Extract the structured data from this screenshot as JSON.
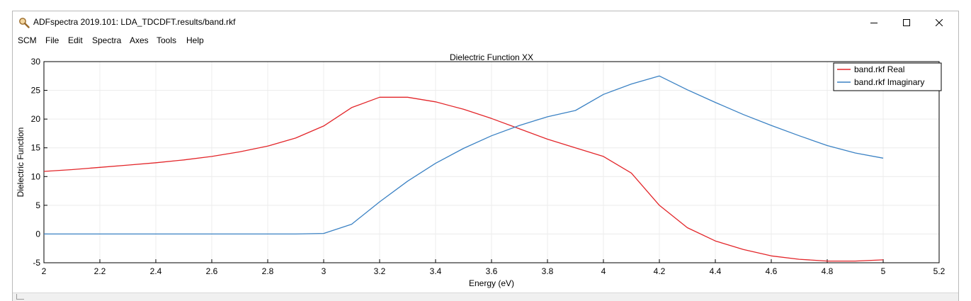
{
  "window": {
    "title": "ADFspectra 2019.101: LDA_TDCDFT.results/band.rkf"
  },
  "menu": {
    "items": [
      "SCM",
      "File",
      "Edit",
      "Spectra",
      "Axes",
      "Tools",
      "Help"
    ]
  },
  "icons": {
    "app": "magnifier-icon",
    "minimize": "minimize-icon",
    "maximize": "maximize-icon",
    "close": "close-icon"
  },
  "chart_data": {
    "type": "line",
    "title": "Dielectric Function  XX",
    "xlabel": "Energy (eV)",
    "ylabel": "Dielectric Function",
    "xlim": [
      2,
      5.2
    ],
    "ylim": [
      -5,
      30
    ],
    "xticks": [
      "2",
      "2.2",
      "2.4",
      "2.6",
      "2.8",
      "3",
      "3.2",
      "3.4",
      "3.6",
      "3.8",
      "4",
      "4.2",
      "4.4",
      "4.6",
      "4.8",
      "5",
      "5.2"
    ],
    "yticks": [
      "-5",
      "0",
      "5",
      "10",
      "15",
      "20",
      "25",
      "30"
    ],
    "grid": true,
    "legend_position": "top-right",
    "x": [
      2.0,
      2.1,
      2.2,
      2.3,
      2.4,
      2.5,
      2.6,
      2.7,
      2.8,
      2.9,
      3.0,
      3.1,
      3.2,
      3.3,
      3.4,
      3.5,
      3.6,
      3.7,
      3.8,
      3.9,
      4.0,
      4.1,
      4.2,
      4.3,
      4.4,
      4.5,
      4.6,
      4.7,
      4.8,
      4.9,
      5.0
    ],
    "series": [
      {
        "name": "band.rkf Real",
        "color": "#e3262a",
        "values": [
          10.9,
          11.2,
          11.6,
          12.0,
          12.4,
          12.9,
          13.5,
          14.3,
          15.3,
          16.7,
          18.8,
          22.0,
          23.8,
          23.8,
          23.0,
          21.7,
          20.1,
          18.3,
          16.5,
          15.0,
          13.5,
          10.6,
          5.0,
          1.1,
          -1.2,
          -2.7,
          -3.8,
          -4.4,
          -4.7,
          -4.7,
          -4.5
        ]
      },
      {
        "name": "band.rkf Imaginary",
        "color": "#3b82c4",
        "values": [
          0,
          0,
          0,
          0,
          0,
          0,
          0,
          0,
          0,
          0,
          0.1,
          1.7,
          5.6,
          9.2,
          12.3,
          14.9,
          17.1,
          18.9,
          20.4,
          21.5,
          24.3,
          26.1,
          27.5,
          25.1,
          22.9,
          20.8,
          18.9,
          17.1,
          15.4,
          14.1,
          13.2
        ]
      }
    ]
  }
}
